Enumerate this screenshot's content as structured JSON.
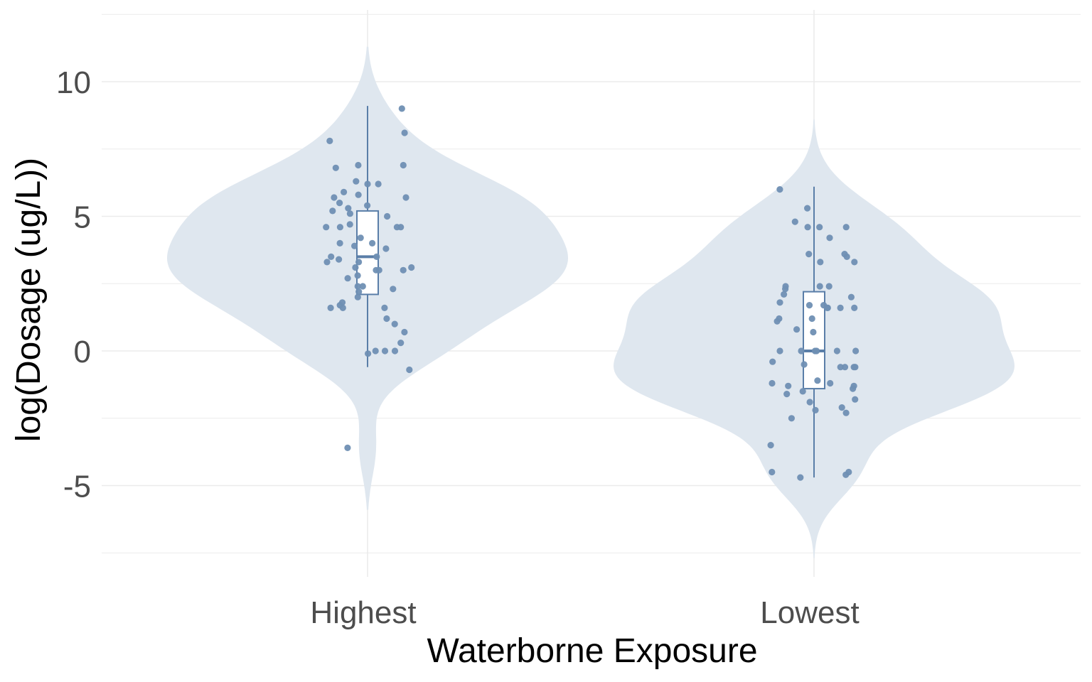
{
  "chart_data": {
    "type": "violin",
    "title": "",
    "xlabel": "Waterborne Exposure",
    "ylabel": "log(Dosage (ug/L))",
    "ylim": [
      -8.5,
      12.5
    ],
    "yticks": [
      -5,
      0,
      5,
      10
    ],
    "ytick_labels": [
      "-5",
      "0",
      "5",
      "10"
    ],
    "grid": true,
    "legend": "none",
    "colors": {
      "violin_fill": "#dfe7ef",
      "points": "#6f8fb3",
      "box_line": "#5a7ea8",
      "box_fill": "#ffffff",
      "grid": "#ebebeb",
      "tick_text": "#4d4d4d"
    },
    "categories": [
      "Highest",
      "Lowest"
    ],
    "groups": [
      {
        "category": "Highest",
        "box": {
          "whisker_low": -0.6,
          "q1": 2.1,
          "median": 3.5,
          "q3": 5.2,
          "whisker_high": 9.1
        },
        "violin_extent": [
          -5.9,
          11.3
        ],
        "points": [
          9.0,
          8.1,
          7.8,
          6.9,
          6.9,
          6.8,
          6.3,
          6.2,
          6.2,
          5.9,
          5.7,
          5.7,
          5.8,
          5.5,
          5.4,
          5.3,
          5.2,
          5.0,
          5.1,
          4.7,
          4.6,
          4.6,
          4.6,
          4.6,
          4.2,
          4.0,
          4.0,
          3.9,
          3.8,
          3.5,
          3.5,
          3.4,
          3.3,
          3.3,
          3.1,
          3.1,
          3.0,
          3.0,
          3.0,
          2.7,
          2.8,
          2.4,
          2.4,
          2.3,
          2.2,
          2.0,
          1.8,
          1.7,
          1.6,
          1.6,
          1.6,
          1.2,
          1.0,
          0.7,
          0.3,
          0.0,
          0.0,
          0.0,
          -0.1,
          -0.7,
          -3.6
        ]
      },
      {
        "category": "Lowest",
        "box": {
          "whisker_low": -4.7,
          "q1": -1.4,
          "median": 0.0,
          "q3": 2.2,
          "whisker_high": 6.1
        },
        "violin_extent": [
          -7.7,
          8.6
        ],
        "points": [
          6.0,
          5.3,
          4.8,
          4.6,
          4.6,
          4.6,
          4.2,
          3.6,
          3.6,
          3.5,
          3.3,
          3.3,
          2.4,
          2.4,
          2.4,
          2.3,
          2.1,
          2.0,
          1.8,
          1.7,
          1.7,
          1.6,
          1.6,
          1.6,
          1.6,
          1.2,
          1.2,
          1.1,
          0.8,
          0.7,
          0.0,
          0.0,
          0.0,
          0.0,
          0.0,
          0.0,
          -0.4,
          -0.5,
          -0.6,
          -0.6,
          -0.6,
          -0.6,
          -1.1,
          -1.2,
          -1.2,
          -1.3,
          -1.3,
          -1.4,
          -1.5,
          -1.6,
          -1.8,
          -1.9,
          -2.1,
          -2.2,
          -2.3,
          -2.5,
          -3.5,
          -4.5,
          -4.5,
          -4.6,
          -4.7
        ]
      }
    ]
  }
}
